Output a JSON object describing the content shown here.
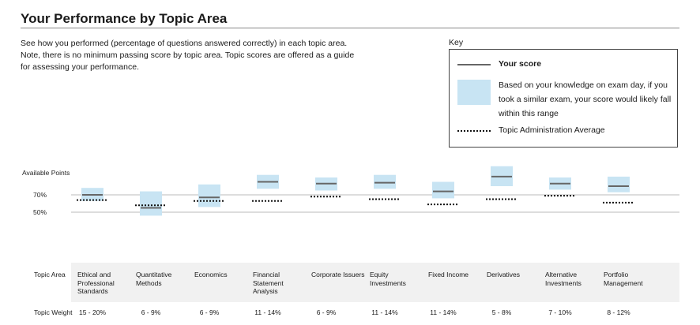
{
  "title": "Your Performance by Topic Area",
  "intro": "See how you performed (percentage of questions answered correctly) in each topic area. Note, there is no minimum passing score by topic area. Topic scores are offered as a guide for assessing your performance.",
  "key": {
    "label": "Key",
    "your_score": "Your score",
    "range_text": "Based on your knowledge on exam day, if you took a similar exam, your score would likely fall within this range",
    "average_text": "Topic Administration Average"
  },
  "colors": {
    "range": "#c8e4f3",
    "score": "#666666",
    "average": "#111111",
    "reference": "#bbbbbb"
  },
  "chart_data": {
    "type": "range",
    "y_axis_labels": [
      "Available Points",
      "70%",
      "50%"
    ],
    "reference_lines": [
      70,
      50
    ],
    "categories": [
      "Ethical and Professional Standards",
      "Quantitative Methods",
      "Economics",
      "Financial Statement Analysis",
      "Corporate Issuers",
      "Equity Investments",
      "Fixed Income",
      "Derivatives",
      "Alternative Investments",
      "Portfolio Management"
    ],
    "score": [
      70,
      55,
      67,
      85,
      83,
      84,
      74,
      91,
      83,
      80
    ],
    "range_low": [
      63,
      46,
      56,
      77,
      75,
      77,
      66,
      80,
      76,
      73
    ],
    "range_high": [
      78,
      74,
      82,
      93,
      90,
      93,
      85,
      103,
      90,
      91
    ],
    "average": [
      64,
      58,
      63,
      63,
      68,
      65,
      59,
      65,
      69,
      61
    ]
  },
  "labels": {
    "topic_area": "Topic Area",
    "topic_weight": "Topic Weight"
  },
  "weights": [
    "15 - 20%",
    "6 - 9%",
    "6 - 9%",
    "11 - 14%",
    "6 - 9%",
    "11 - 14%",
    "11 - 14%",
    "5 - 8%",
    "7 - 10%",
    "8 - 12%"
  ]
}
